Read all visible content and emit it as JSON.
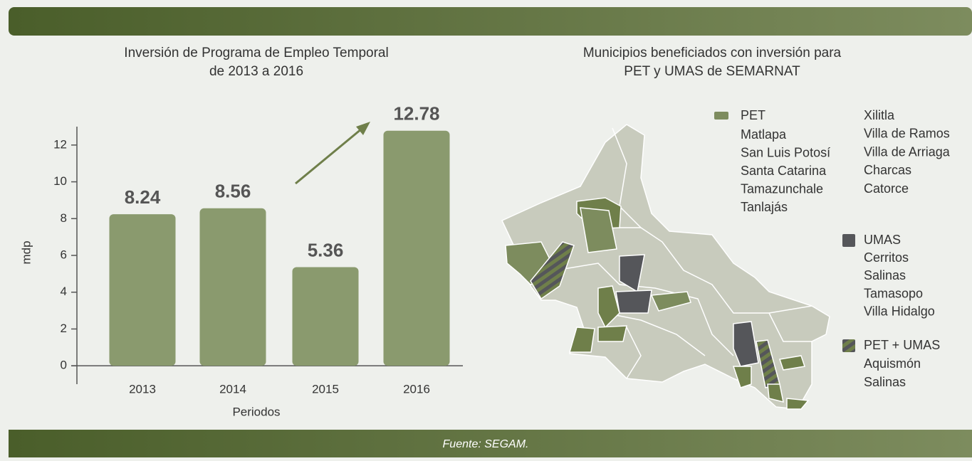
{
  "chart_data": {
    "type": "bar",
    "title": [
      "Inversión de Programa de Empleo Temporal",
      "de 2013 a 2016"
    ],
    "categories": [
      "2013",
      "2014",
      "2015",
      "2016"
    ],
    "values": [
      8.24,
      8.56,
      5.36,
      12.78
    ],
    "color": "#8a9a6e",
    "xlabel": "Periodos",
    "ylabel": "mdp",
    "ylim": [
      -1,
      13
    ],
    "yticks": [
      0,
      2,
      4,
      6,
      8,
      10,
      12
    ],
    "grid": false
  },
  "map": {
    "title": [
      "Municipios beneficiados con inversión para",
      "PET y UMAS de SEMARNAT"
    ],
    "legend": [
      {
        "name": "PET",
        "items": [
          "Matlapa",
          "San Luis Potosí",
          "Santa Catarina",
          "Tamazunchale",
          "Tanlajás",
          "Xilitla",
          "Villa de Ramos",
          "Villa de Arriaga",
          "Charcas",
          "Catorce"
        ]
      },
      {
        "name": "UMAS",
        "items": [
          "Cerritos",
          "Salinas",
          "Tamasopo",
          "Villa Hidalgo"
        ]
      },
      {
        "name": "PET + UMAS",
        "items": [
          "Aquismón",
          "Salinas"
        ]
      }
    ]
  },
  "footer": "Fuente: SEGAM."
}
